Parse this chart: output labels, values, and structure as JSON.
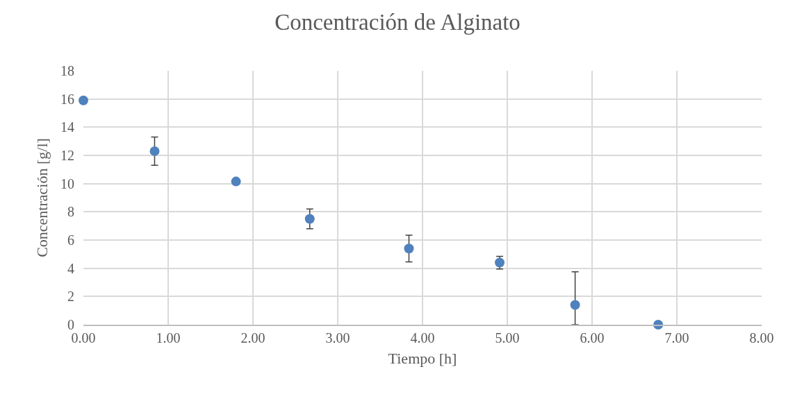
{
  "chart_data": {
    "type": "scatter",
    "title": "Concentración de Alginato",
    "xlabel": "Tiempo [h]",
    "ylabel": "Concentración [g/l]",
    "x": [
      0,
      0.84,
      1.8,
      2.67,
      3.84,
      4.91,
      5.8,
      6.78
    ],
    "series": [
      {
        "color": "#4f81bd",
        "values": [
          15.9,
          12.3,
          10.15,
          7.5,
          5.4,
          4.4,
          1.4,
          0
        ],
        "errors": [
          null,
          1.0,
          null,
          0.7,
          0.95,
          0.45,
          [
            0,
            3.75
          ],
          null
        ]
      }
    ],
    "xlim": [
      0,
      8
    ],
    "xticks": [
      {
        "value": 0,
        "label": "0.00"
      },
      {
        "value": 1,
        "label": "1.00"
      },
      {
        "value": 2,
        "label": "2.00"
      },
      {
        "value": 3,
        "label": "3.00"
      },
      {
        "value": 4,
        "label": "4.00"
      },
      {
        "value": 5,
        "label": "5.00"
      },
      {
        "value": 6,
        "label": "6.00"
      },
      {
        "value": 7,
        "label": "7.00"
      },
      {
        "value": 8,
        "label": "8.00"
      }
    ],
    "ylim": [
      0,
      18
    ],
    "yticks": [
      0,
      2,
      4,
      6,
      8,
      10,
      12,
      14,
      16,
      18
    ],
    "grid": true,
    "marker": "circle"
  }
}
